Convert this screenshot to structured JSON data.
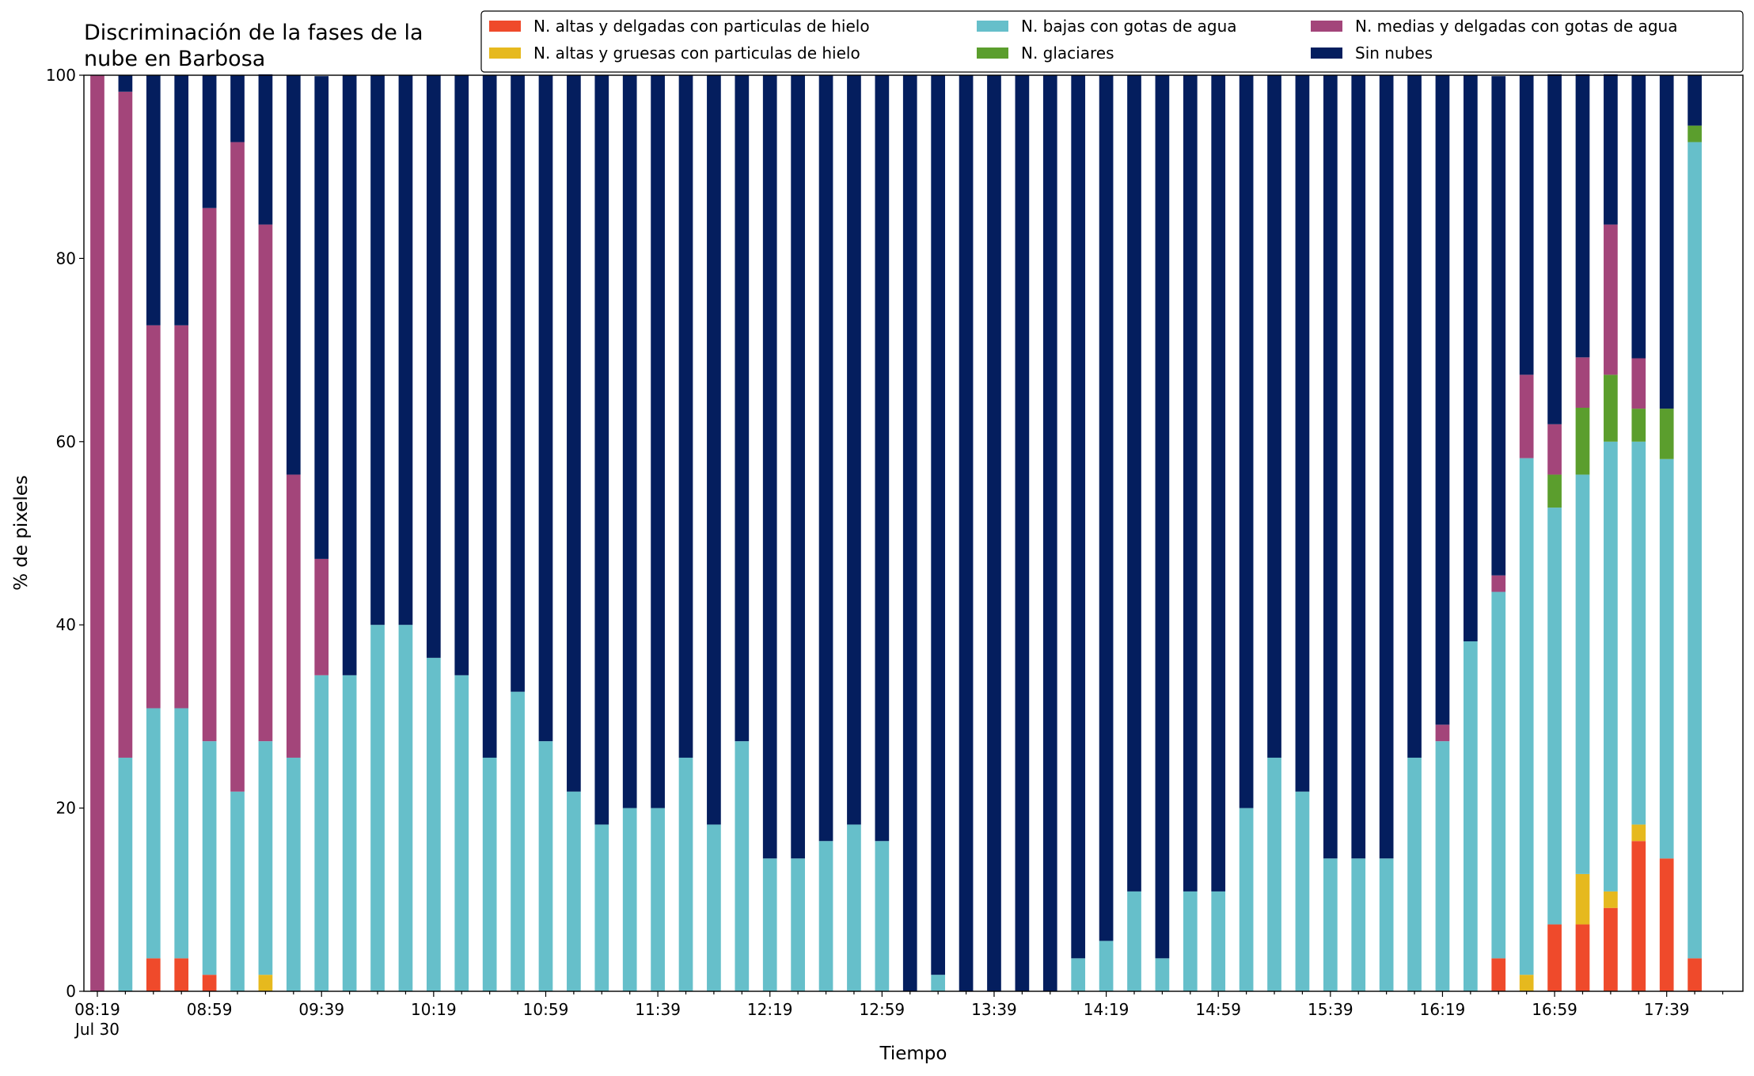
{
  "chart_data": {
    "type": "stacked_bar",
    "title": [
      "Discriminación de la fases de la",
      "nube en Barbosa"
    ],
    "xlabel": "Tiempo",
    "ylabel": "% de pixeles",
    "x_date": "Jul 30",
    "categories": [
      "08:19",
      null,
      null,
      null,
      "08:59",
      null,
      null,
      null,
      "09:39",
      null,
      null,
      null,
      "10:19",
      null,
      null,
      null,
      "10:59",
      null,
      null,
      null,
      "11:39",
      null,
      null,
      null,
      "12:19",
      null,
      null,
      null,
      "12:59",
      null,
      null,
      null,
      "13:39",
      null,
      null,
      null,
      "14:19",
      null,
      null,
      null,
      "14:59",
      null,
      null,
      null,
      "15:39",
      null,
      null,
      null,
      "16:19",
      null,
      null,
      null,
      "16:59",
      null,
      null,
      null,
      "17:39",
      null
    ],
    "ylim": [
      0,
      100
    ],
    "yticks": [
      0,
      20,
      40,
      60,
      80,
      100
    ],
    "legend_loc": "upper right",
    "series": [
      {
        "name": "N. altas y delgadas con particulas de hielo",
        "color": "#ef4a2b",
        "values": [
          0,
          0,
          3.6,
          3.6,
          1.8,
          0,
          0,
          0,
          0,
          0,
          0,
          0,
          0,
          0,
          0,
          0,
          0,
          0,
          0,
          0,
          0,
          0,
          0,
          0,
          0,
          0,
          0,
          0,
          0,
          0,
          0,
          0,
          0,
          0,
          0,
          0,
          0,
          0,
          0,
          0,
          0,
          0,
          0,
          0,
          0,
          0,
          0,
          0,
          0,
          0,
          3.6,
          0,
          7.3,
          7.3,
          9.1,
          16.4,
          14.5,
          3.6
        ]
      },
      {
        "name": "N. altas y gruesas con particulas de hielo",
        "color": "#e6b91e",
        "values": [
          0,
          0,
          0,
          0,
          0,
          0,
          1.8,
          0,
          0,
          0,
          0,
          0,
          0,
          0,
          0,
          0,
          0,
          0,
          0,
          0,
          0,
          0,
          0,
          0,
          0,
          0,
          0,
          0,
          0,
          0,
          0,
          0,
          0,
          0,
          0,
          0,
          0,
          0,
          0,
          0,
          0,
          0,
          0,
          0,
          0,
          0,
          0,
          0,
          0,
          0,
          0,
          1.8,
          0,
          5.5,
          1.8,
          1.8,
          0,
          0
        ]
      },
      {
        "name": "N. bajas con gotas de agua",
        "color": "#66bfca",
        "values": [
          0,
          25.5,
          27.3,
          27.3,
          25.5,
          21.8,
          25.5,
          25.5,
          34.5,
          34.5,
          40,
          40,
          36.4,
          34.5,
          25.5,
          32.7,
          27.3,
          21.8,
          18.2,
          20,
          20,
          25.5,
          18.2,
          27.3,
          14.5,
          14.5,
          16.4,
          18.2,
          16.4,
          0,
          1.8,
          0,
          0,
          0,
          0,
          3.6,
          5.5,
          10.9,
          3.6,
          10.9,
          10.9,
          20,
          25.5,
          21.8,
          14.5,
          14.5,
          14.5,
          25.5,
          27.3,
          38.2,
          40,
          56.4,
          45.5,
          43.6,
          49.1,
          41.8,
          43.6,
          89.1
        ]
      },
      {
        "name": "N. glaciares",
        "color": "#5b9e2d",
        "values": [
          0,
          0,
          0,
          0,
          0,
          0,
          0,
          0,
          0,
          0,
          0,
          0,
          0,
          0,
          0,
          0,
          0,
          0,
          0,
          0,
          0,
          0,
          0,
          0,
          0,
          0,
          0,
          0,
          0,
          0,
          0,
          0,
          0,
          0,
          0,
          0,
          0,
          0,
          0,
          0,
          0,
          0,
          0,
          0,
          0,
          0,
          0,
          0,
          0,
          0,
          0,
          0,
          3.6,
          7.3,
          7.3,
          3.6,
          5.5,
          1.8
        ]
      },
      {
        "name": "N. medias y delgadas con gotas de agua",
        "color": "#a3457a",
        "values": [
          100,
          72.7,
          41.8,
          41.8,
          58.2,
          70.9,
          56.4,
          30.9,
          12.7,
          0,
          0,
          0,
          0,
          0,
          0,
          0,
          0,
          0,
          0,
          0,
          0,
          0,
          0,
          0,
          0,
          0,
          0,
          0,
          0,
          0,
          0,
          0,
          0,
          0,
          0,
          0,
          0,
          0,
          0,
          0,
          0,
          0,
          0,
          0,
          0,
          0,
          0,
          0,
          1.8,
          0,
          1.8,
          9.1,
          5.5,
          5.5,
          16.4,
          5.5,
          0,
          0
        ]
      },
      {
        "name": "Sin nubes",
        "color": "#041e5e",
        "values": [
          0,
          1.8,
          27.3,
          27.3,
          14.5,
          7.3,
          16.4,
          43.6,
          52.7,
          65.5,
          60,
          60,
          63.6,
          65.5,
          74.5,
          67.3,
          72.7,
          78.2,
          81.8,
          80,
          80,
          74.5,
          81.8,
          72.7,
          85.5,
          85.5,
          83.6,
          81.8,
          83.6,
          100,
          98.2,
          100,
          100,
          100,
          100,
          96.4,
          94.5,
          89.1,
          96.4,
          89.1,
          89.1,
          80,
          74.5,
          78.2,
          85.5,
          85.5,
          85.5,
          74.5,
          70.9,
          61.8,
          54.5,
          32.7,
          38.2,
          30.9,
          16.4,
          30.9,
          36.4,
          5.5
        ]
      }
    ]
  }
}
